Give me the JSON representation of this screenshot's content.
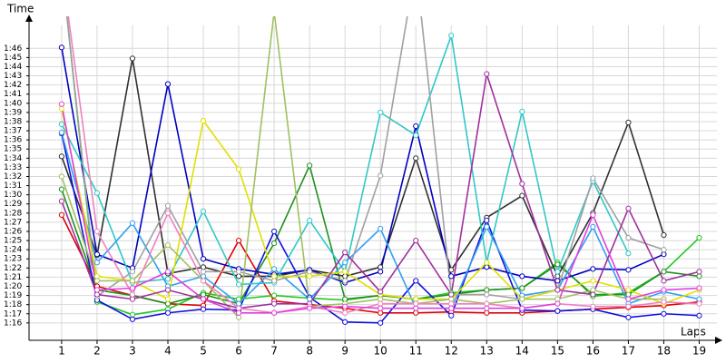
{
  "chart_data": {
    "type": "line",
    "y_label": "Time",
    "x_label": "Laps",
    "x": [
      1,
      2,
      3,
      4,
      5,
      6,
      7,
      8,
      9,
      10,
      11,
      12,
      13,
      14,
      15,
      16,
      17,
      18,
      19
    ],
    "xlim": [
      0.08,
      19.5
    ],
    "xticks": [
      1,
      2,
      3,
      4,
      5,
      6,
      7,
      8,
      9,
      10,
      11,
      12,
      13,
      14,
      15,
      16,
      17,
      18,
      19
    ],
    "ylim": [
      74.1,
      109.5
    ],
    "yticks": [
      {
        "value": 76,
        "label": "1:16"
      },
      {
        "value": 77,
        "label": "1:17"
      },
      {
        "value": 78,
        "label": "1:18"
      },
      {
        "value": 79,
        "label": "1:19"
      },
      {
        "value": 80,
        "label": "1:20"
      },
      {
        "value": 81,
        "label": "1:21"
      },
      {
        "value": 82,
        "label": "1:22"
      },
      {
        "value": 83,
        "label": "1:23"
      },
      {
        "value": 84,
        "label": "1:24"
      },
      {
        "value": 85,
        "label": "1:25"
      },
      {
        "value": 86,
        "label": "1:26"
      },
      {
        "value": 87,
        "label": "1:27"
      },
      {
        "value": 88,
        "label": "1:28"
      },
      {
        "value": 89,
        "label": "1:29"
      },
      {
        "value": 90,
        "label": "1:30"
      },
      {
        "value": 91,
        "label": "1:31"
      },
      {
        "value": 92,
        "label": "1:32"
      },
      {
        "value": 93,
        "label": "1:33"
      },
      {
        "value": 94,
        "label": "1:34"
      },
      {
        "value": 95,
        "label": "1:35"
      },
      {
        "value": 96,
        "label": "1:36"
      },
      {
        "value": 97,
        "label": "1:37"
      },
      {
        "value": 98,
        "label": "1:38"
      },
      {
        "value": 99,
        "label": "1:39"
      },
      {
        "value": 100,
        "label": "1:40"
      },
      {
        "value": 101,
        "label": "1:41"
      },
      {
        "value": 102,
        "label": "1:42"
      },
      {
        "value": 103,
        "label": "1:43"
      },
      {
        "value": 104,
        "label": "1:44"
      },
      {
        "value": 105,
        "label": "1:45"
      },
      {
        "value": 106,
        "label": "1:46"
      }
    ],
    "grid": true,
    "series": [
      {
        "color": "#e00000",
        "values": [
          87.8,
          80.0,
          79.0,
          78.1,
          77.9,
          85.0,
          78.4,
          78.0,
          77.6,
          77.1,
          77.1,
          77.2,
          77.1,
          77.1,
          77.3,
          77.5,
          77.7,
          77.9,
          78.3
        ]
      },
      {
        "color": "#20c820",
        "values": [
          115,
          78.3,
          76.9,
          77.5,
          79.3,
          78.6,
          79.0,
          78.7,
          78.5,
          79.0,
          78.6,
          79.3,
          79.6,
          79.8,
          82.6,
          78.9,
          79.3,
          81.6,
          85.3
        ]
      },
      {
        "color": "#209020",
        "values": [
          90.6,
          79.6,
          79.0,
          78.1,
          79.1,
          78.1,
          84.7,
          93.2,
          78.6,
          79.0,
          78.6,
          79.1,
          79.6,
          79.8,
          82.4,
          79.1,
          79.1,
          81.6,
          81.1
        ]
      },
      {
        "color": "#303030",
        "values": [
          94.2,
          83.4,
          104.9,
          81.4,
          82.1,
          81.1,
          81.1,
          81.8,
          81.1,
          82.1,
          94.0,
          81.8,
          87.5,
          89.9,
          81.1,
          88.0,
          97.9,
          85.6,
          null
        ]
      },
      {
        "color": "#0000c0",
        "values": [
          106.1,
          83.5,
          82.0,
          102.1,
          83.0,
          81.9,
          81.3,
          81.8,
          80.4,
          81.6,
          97.5,
          81.1,
          82.1,
          81.1,
          80.6,
          81.9,
          81.8,
          83.5,
          null
        ]
      },
      {
        "color": "#1010e0",
        "values": [
          96.7,
          78.5,
          76.4,
          77.1,
          77.5,
          77.4,
          86.0,
          78.8,
          76.1,
          76.0,
          80.6,
          76.8,
          87.2,
          77.4,
          77.3,
          77.5,
          76.6,
          77.0,
          76.8
        ]
      },
      {
        "color": "#30c8c8",
        "values": [
          97.7,
          90.2,
          80.4,
          80.8,
          88.2,
          80.2,
          80.4,
          87.2,
          81.6,
          99.0,
          96.5,
          107.4,
          82.6,
          99.1,
          81.6,
          91.5,
          83.6,
          null,
          null
        ]
      },
      {
        "color": "#30a0f0",
        "values": [
          96.8,
          82.6,
          86.9,
          80.0,
          81.1,
          78.1,
          81.9,
          78.6,
          82.6,
          86.3,
          77.6,
          77.6,
          86.5,
          79.0,
          79.6,
          86.5,
          78.1,
          79.4,
          78.6
        ]
      },
      {
        "color": "#a0a0a0",
        "values": [
          115,
          78.9,
          81.6,
          88.8,
          81.6,
          81.6,
          80.6,
          81.6,
          80.6,
          92.1,
          115,
          79.1,
          79.1,
          78.6,
          79.6,
          91.8,
          85.3,
          84.0,
          null
        ]
      },
      {
        "color": "#e0e000",
        "values": [
          99.4,
          81.1,
          80.6,
          78.6,
          98.1,
          92.8,
          81.1,
          81.1,
          81.6,
          79.1,
          78.6,
          78.6,
          82.6,
          78.6,
          79.6,
          80.6,
          79.6,
          78.1,
          79.6
        ]
      },
      {
        "color": "#a0c060",
        "values": [
          92.0,
          80.6,
          80.6,
          84.5,
          80.6,
          76.6,
          110,
          77.8,
          78.1,
          78.6,
          78.1,
          78.6,
          78.1,
          78.6,
          78.6,
          79.6,
          78.6,
          78.6,
          null
        ]
      },
      {
        "color": "#a030a0",
        "values": [
          89.3,
          79.1,
          78.6,
          79.6,
          78.6,
          77.6,
          78.1,
          78.1,
          83.7,
          79.4,
          85.0,
          79.1,
          103.2,
          91.2,
          79.6,
          79.1,
          88.5,
          80.6,
          81.6
        ]
      },
      {
        "color": "#f080c0",
        "values": [
          115,
          86.0,
          79.1,
          88.0,
          80.6,
          77.6,
          77.1,
          77.8,
          77.1,
          78.1,
          78.1,
          78.1,
          78.1,
          77.6,
          78.1,
          77.8,
          77.8,
          78.3,
          78.1
        ]
      },
      {
        "color": "#e040e0",
        "values": [
          99.9,
          79.6,
          79.8,
          81.6,
          78.6,
          77.1,
          77.1,
          77.6,
          77.8,
          77.6,
          77.6,
          77.6,
          77.6,
          77.6,
          78.1,
          87.8,
          78.6,
          79.6,
          79.8
        ]
      }
    ]
  }
}
